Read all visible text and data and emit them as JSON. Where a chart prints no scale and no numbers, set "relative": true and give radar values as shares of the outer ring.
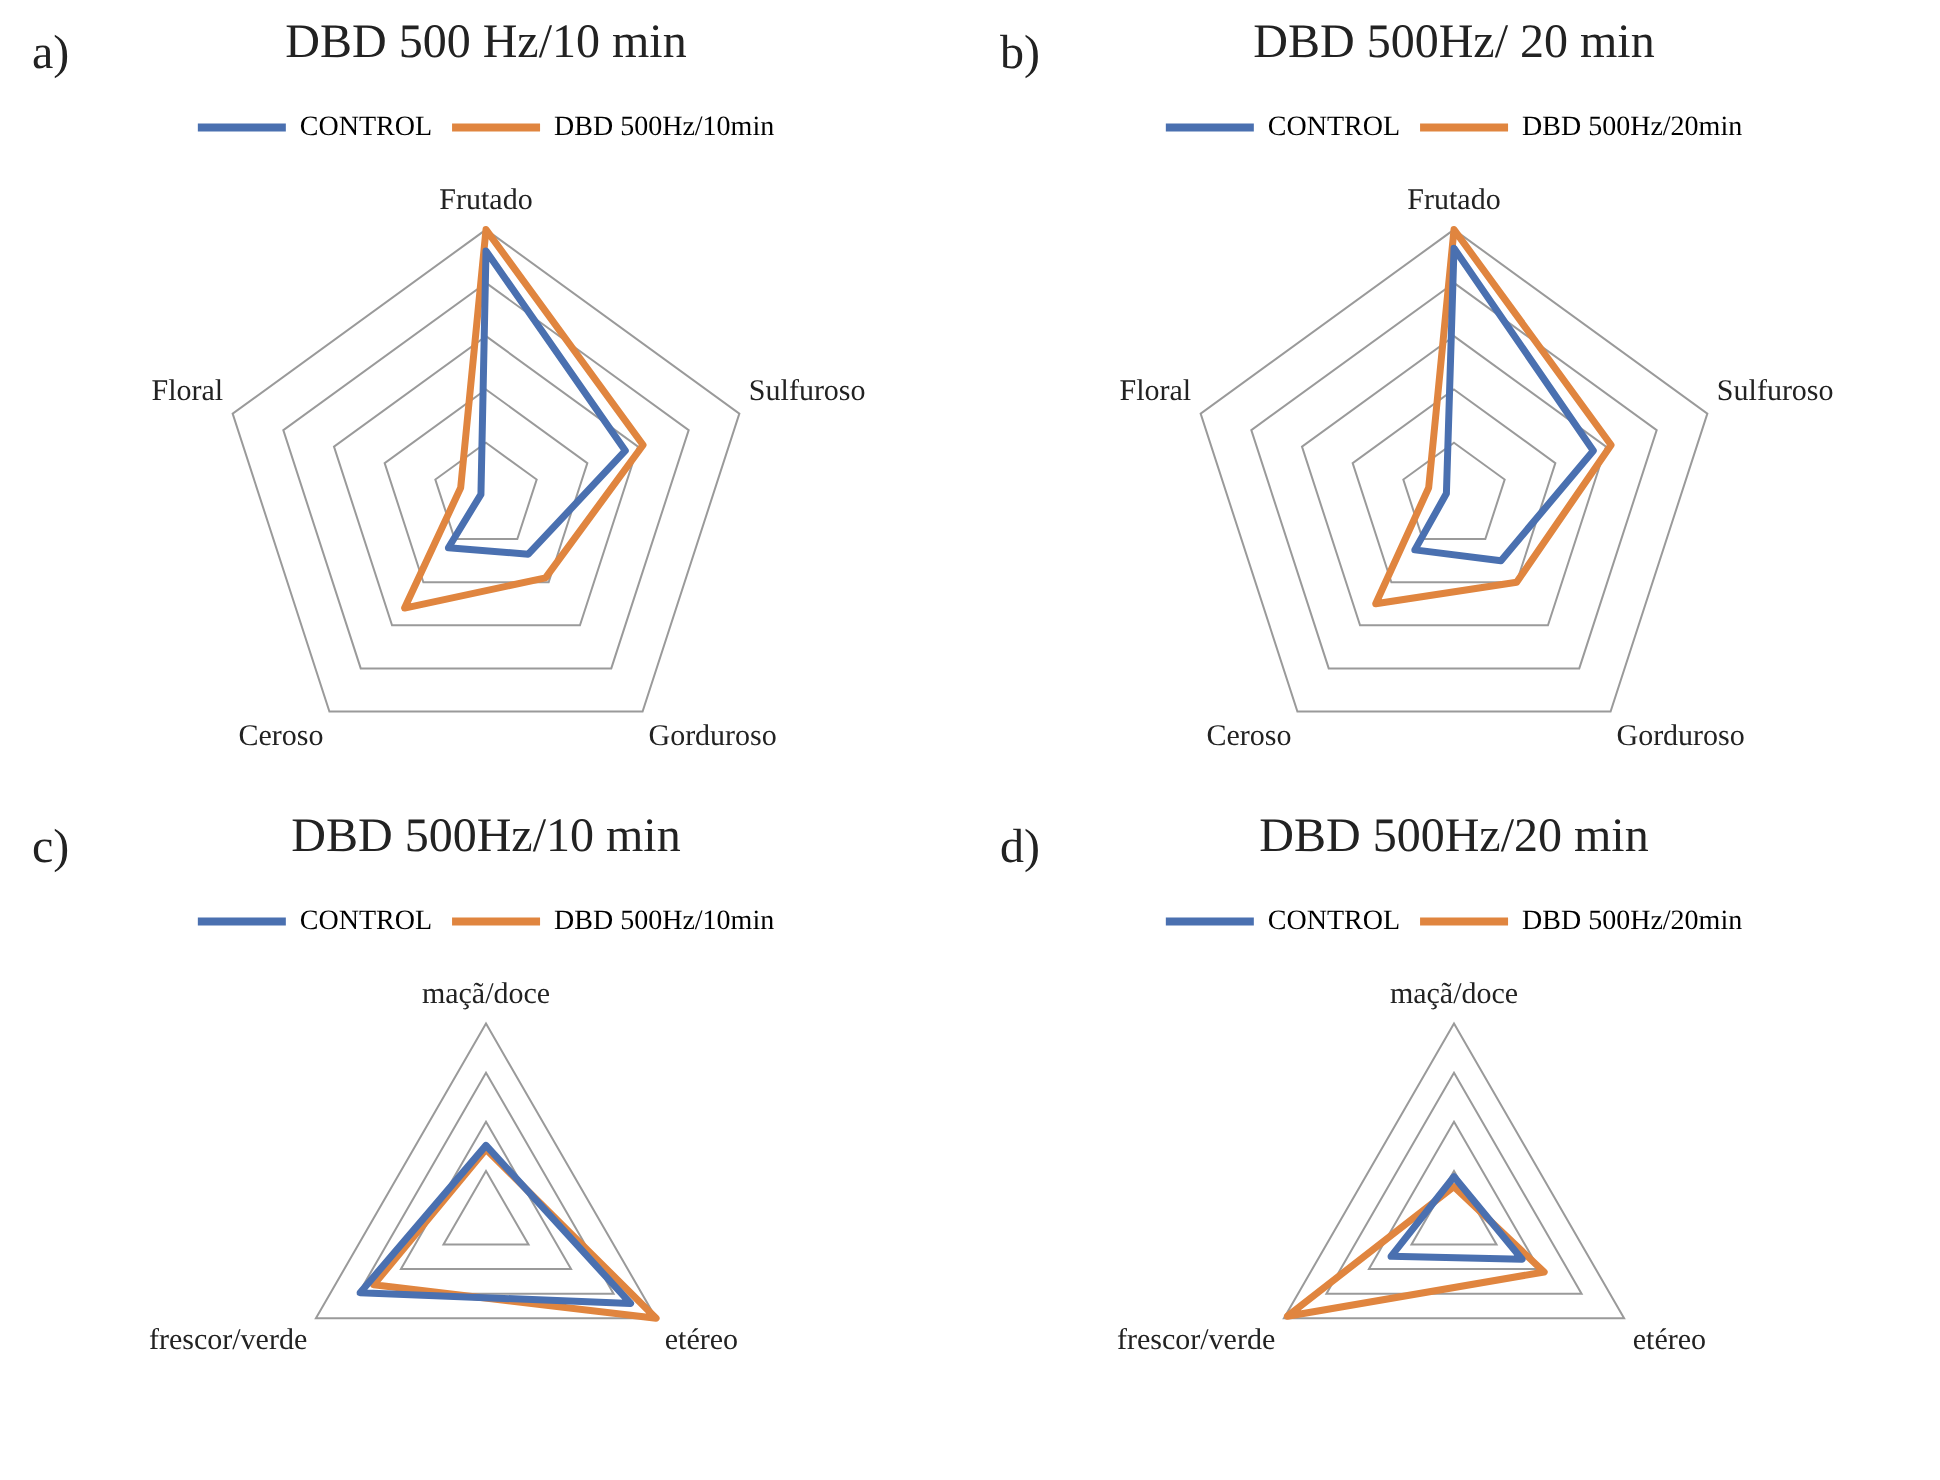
{
  "chart_data": [
    {
      "type": "radar",
      "title": "DBD 500 Hz/10 min",
      "annotations": [
        "a)"
      ],
      "categories": [
        "Frutado",
        "Sulfuroso",
        "Gorduroso",
        "Ceroso",
        "Floral"
      ],
      "relative": true,
      "grid": true,
      "legend": "top",
      "marker": "none",
      "series": [
        {
          "name": "CONTROL",
          "color": "#4a70b0",
          "values": [
            0.92,
            0.55,
            0.27,
            0.24,
            0.02
          ]
        },
        {
          "name": "DBD 500Hz/10min",
          "color": "#e0853f",
          "values": [
            1,
            0.62,
            0.38,
            0.52,
            0.1
          ]
        }
      ]
    },
    {
      "type": "radar",
      "title": "DBD 500Hz/ 20 min",
      "annotations": [
        "b)"
      ],
      "categories": [
        "Frutado",
        "Sulfuroso",
        "Gorduroso",
        "Ceroso",
        "Floral"
      ],
      "relative": true,
      "grid": true,
      "legend": "top",
      "marker": "none",
      "series": [
        {
          "name": "CONTROL",
          "color": "#4a70b0",
          "values": [
            0.93,
            0.55,
            0.3,
            0.25,
            0.03
          ]
        },
        {
          "name": "DBD 500Hz/20min",
          "color": "#e0853f",
          "values": [
            1,
            0.62,
            0.4,
            0.5,
            0.1
          ]
        }
      ]
    },
    {
      "type": "radar",
      "title": "DBD 500Hz/10 min",
      "annotations": [
        "c)"
      ],
      "categories": [
        "maçã/doce",
        "etéreo",
        "frescor/verde"
      ],
      "relative": true,
      "grid": true,
      "legend": "top",
      "marker": "none",
      "series": [
        {
          "name": "CONTROL",
          "color": "#4a70b0",
          "values": [
            0.38,
            0.85,
            0.74
          ]
        },
        {
          "name": "DBD 500Hz/10min",
          "color": "#e0853f",
          "values": [
            0.36,
            1,
            0.66
          ]
        }
      ]
    },
    {
      "type": "radar",
      "title": "DBD 500Hz/20 min",
      "annotations": [
        "d)"
      ],
      "categories": [
        "maçã/doce",
        "etéreo",
        "frescor/verde"
      ],
      "relative": true,
      "grid": true,
      "legend": "top",
      "marker": "none",
      "series": [
        {
          "name": "CONTROL",
          "color": "#4a70b0",
          "values": [
            0.22,
            0.4,
            0.37
          ]
        },
        {
          "name": "DBD 500Hz/20min",
          "color": "#e0853f",
          "values": [
            0.17,
            0.53,
            0.98
          ]
        }
      ]
    }
  ]
}
